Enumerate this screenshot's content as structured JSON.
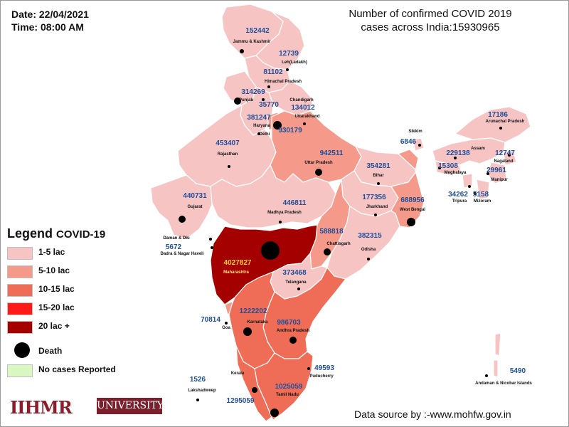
{
  "header": {
    "date": "Date: 22/04/2021",
    "time": "Time: 08:00 AM",
    "title_line1": "Number of confirmed COVID 2019",
    "title_line2": "cases across India:15930965"
  },
  "legend": {
    "title": "Legend",
    "subtitle": "COVID-19",
    "items": [
      {
        "label": "1-5 lac",
        "color": "#f7c4c4"
      },
      {
        "label": "5-10 lac",
        "color": "#f59a8a"
      },
      {
        "label": "10-15 lac",
        "color": "#ef6d56"
      },
      {
        "label": "15-20 lac",
        "color": "#ff1a1a"
      },
      {
        "label": "20 lac +",
        "color": "#a50000"
      }
    ],
    "death_label": "Death",
    "no_cases_label": "No cases Reported",
    "no_cases_color": "#d9f7c0"
  },
  "colors": {
    "count_text": "#1f4e9a",
    "highlight_count": "#ffd21f",
    "death_dot": "#000000"
  },
  "regions": [
    {
      "name": "Jammu & Kashmir",
      "count": "152442"
    },
    {
      "name": "Leh(Ladakh)",
      "count": "12739"
    },
    {
      "name": "Himachal Pradesh",
      "count": "81102"
    },
    {
      "name": "Punjab",
      "count": "314269"
    },
    {
      "name": "Chandigarh",
      "count": "35770"
    },
    {
      "name": "Uttarakhand",
      "count": "134012"
    },
    {
      "name": "Haryana",
      "count": "381247"
    },
    {
      "name": "Delhi",
      "count": "930179"
    },
    {
      "name": "Rajasthan",
      "count": "453407"
    },
    {
      "name": "Uttar Pradesh",
      "count": "942511"
    },
    {
      "name": "Bihar",
      "count": "354281"
    },
    {
      "name": "Sikkim",
      "count": "6846"
    },
    {
      "name": "Arunachal Pradesh",
      "count": "17186"
    },
    {
      "name": "Assam",
      "count": "229138"
    },
    {
      "name": "Nagaland",
      "count": "12747"
    },
    {
      "name": "Meghalaya",
      "count": "15308"
    },
    {
      "name": "Manipur",
      "count": "29961"
    },
    {
      "name": "Tripura",
      "count": "34262"
    },
    {
      "name": "Mizoram",
      "count": "5158"
    },
    {
      "name": "Gujarat",
      "count": "440731"
    },
    {
      "name": "Madhya Pradesh",
      "count": "446811"
    },
    {
      "name": "Jharkhand",
      "count": "177356"
    },
    {
      "name": "West Bengal",
      "count": "688956"
    },
    {
      "name": "Daman & Diu",
      "count": ""
    },
    {
      "name": "Dadra & Nagar Haveli",
      "count": "5672"
    },
    {
      "name": "Chattisgarh",
      "count": "588818"
    },
    {
      "name": "Odisha",
      "count": "382315"
    },
    {
      "name": "Maharashtra",
      "count": "4027827"
    },
    {
      "name": "Telangana",
      "count": "373468"
    },
    {
      "name": "Goa",
      "count": "70814"
    },
    {
      "name": "Karnataka",
      "count": "1222202"
    },
    {
      "name": "Andhra Pradesh",
      "count": "986703"
    },
    {
      "name": "Kerala",
      "count": ""
    },
    {
      "name": "Puducherry",
      "count": "49593"
    },
    {
      "name": "Lakshadweep",
      "count": "1526"
    },
    {
      "name": "Tamil Nadu",
      "count": "1025059"
    },
    {
      "name": "Kerala count",
      "count": "1295059"
    },
    {
      "name": "Andaman & Nicobar Islands",
      "count": "5490"
    }
  ],
  "brand": {
    "prefix": "IIHMR",
    "suffix": "UNIVERSITY"
  },
  "footer": {
    "source": "Data source by :-www.mohfw.gov.in"
  }
}
